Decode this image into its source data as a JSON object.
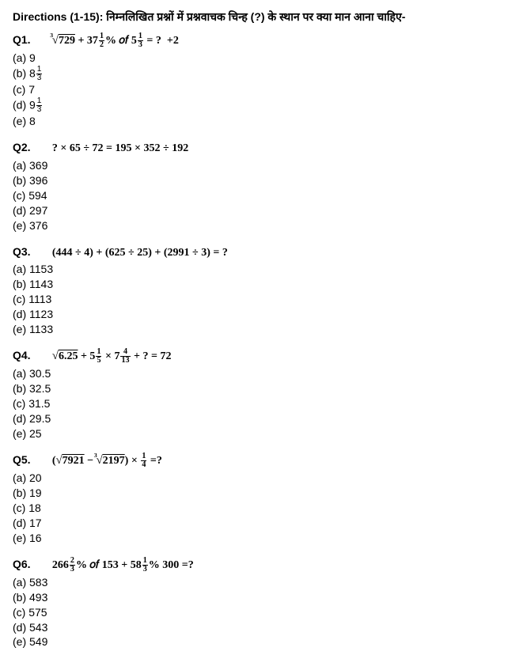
{
  "directions": "Directions (1-15): निम्नलिखित प्रश्नों में प्रश्नवाचक चिन्ह (?) के स्थान पर क्या मान आना चाहिए-",
  "questions": [
    {
      "num": "Q1.",
      "options": [
        "(a) 9",
        "(b) 8⅓",
        "(c) 7",
        "(d) 9⅓",
        "(e) 8"
      ]
    },
    {
      "num": "Q2.",
      "expr": "? × 65 ÷ 72 = 195 × 352 ÷ 192",
      "options": [
        "(a) 369",
        "(b) 396",
        "(c) 594",
        "(d) 297",
        "(e) 376"
      ]
    },
    {
      "num": "Q3.",
      "expr": "(444 ÷ 4) + (625 ÷ 25) + (2991 ÷ 3) = ?",
      "options": [
        "(a) 1153",
        "(b) 1143",
        "(c) 1113",
        "(d) 1123",
        "(e) 1133"
      ]
    },
    {
      "num": "Q4.",
      "options": [
        "(a) 30.5",
        "(b) 32.5",
        "(c) 31.5",
        "(d) 29.5",
        "(e) 25"
      ]
    },
    {
      "num": "Q5.",
      "options": [
        "(a) 20",
        "(b) 19",
        "(c) 18",
        "(d) 17",
        "(e) 16"
      ]
    },
    {
      "num": "Q6.",
      "options": [
        "(a) 583",
        "(b) 493",
        "(c) 575",
        "(d) 543",
        "(e) 549"
      ]
    }
  ]
}
